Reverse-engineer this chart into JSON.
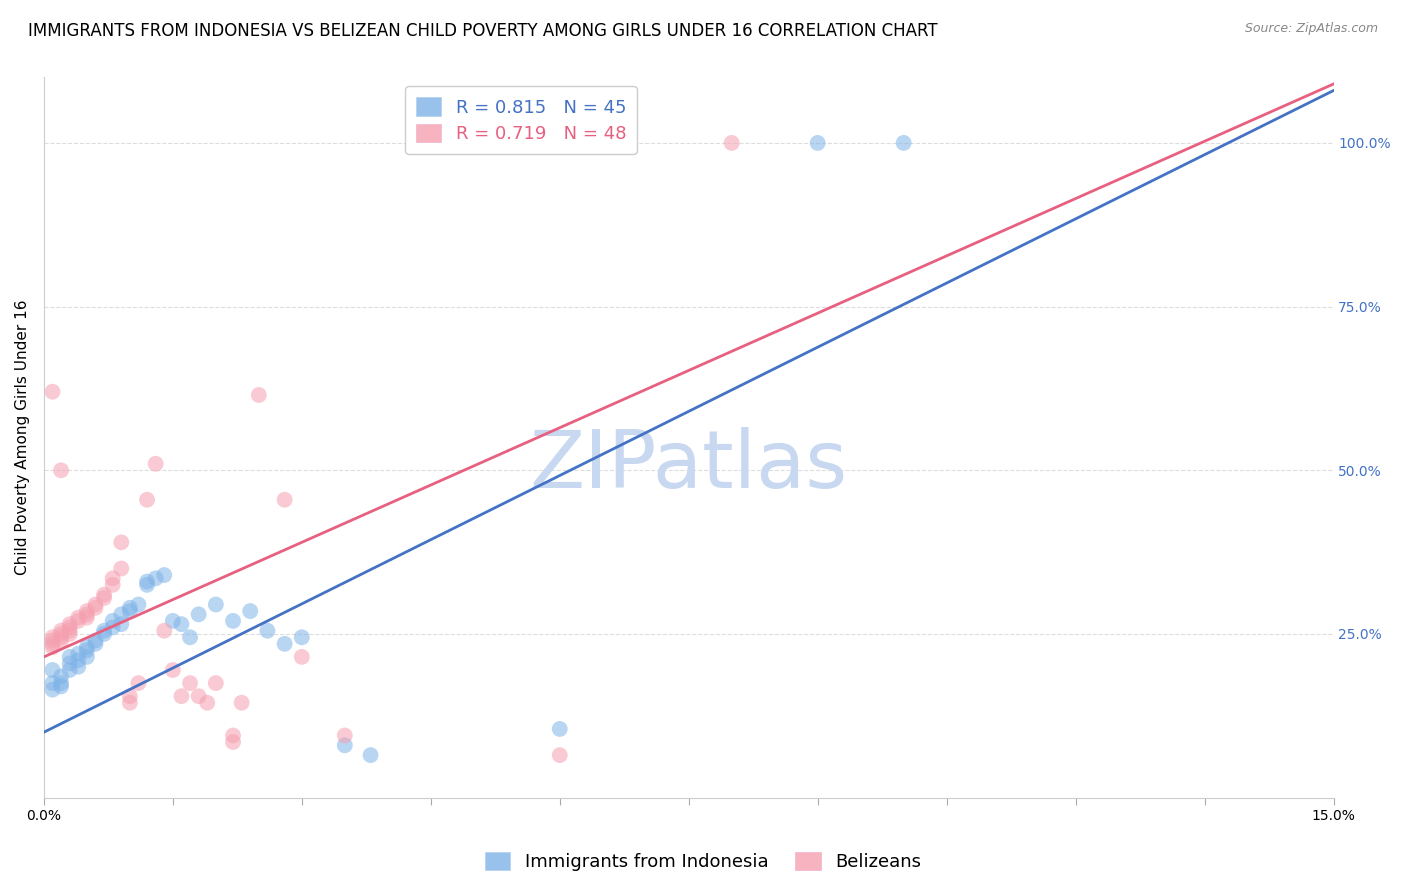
{
  "title": "IMMIGRANTS FROM INDONESIA VS BELIZEAN CHILD POVERTY AMONG GIRLS UNDER 16 CORRELATION CHART",
  "source": "Source: ZipAtlas.com",
  "ylabel": "Child Poverty Among Girls Under 16",
  "xlim": [
    0.0,
    0.15
  ],
  "ylim": [
    0.0,
    1.1
  ],
  "xticks": [
    0.0,
    0.015,
    0.03,
    0.045,
    0.06,
    0.075,
    0.09,
    0.105,
    0.12,
    0.135,
    0.15
  ],
  "xtick_labels_show": {
    "0.0": "0.0%",
    "0.15": "15.0%"
  },
  "yticks_right": [
    0.25,
    0.5,
    0.75,
    1.0
  ],
  "ytick_labels_right": [
    "25.0%",
    "50.0%",
    "75.0%",
    "100.0%"
  ],
  "blue_R": 0.815,
  "blue_N": 45,
  "pink_R": 0.719,
  "pink_N": 48,
  "blue_label": "Immigrants from Indonesia",
  "pink_label": "Belizeans",
  "blue_color": "#7EB3E8",
  "pink_color": "#F5A0B0",
  "blue_line_color": "#4472C4",
  "pink_line_color": "#E86080",
  "blue_scatter": [
    [
      0.001,
      0.195
    ],
    [
      0.001,
      0.175
    ],
    [
      0.001,
      0.165
    ],
    [
      0.002,
      0.185
    ],
    [
      0.002,
      0.175
    ],
    [
      0.002,
      0.17
    ],
    [
      0.003,
      0.215
    ],
    [
      0.003,
      0.205
    ],
    [
      0.003,
      0.195
    ],
    [
      0.004,
      0.22
    ],
    [
      0.004,
      0.21
    ],
    [
      0.004,
      0.2
    ],
    [
      0.005,
      0.23
    ],
    [
      0.005,
      0.225
    ],
    [
      0.005,
      0.215
    ],
    [
      0.006,
      0.235
    ],
    [
      0.006,
      0.24
    ],
    [
      0.007,
      0.255
    ],
    [
      0.007,
      0.25
    ],
    [
      0.008,
      0.26
    ],
    [
      0.008,
      0.27
    ],
    [
      0.009,
      0.265
    ],
    [
      0.009,
      0.28
    ],
    [
      0.01,
      0.285
    ],
    [
      0.01,
      0.29
    ],
    [
      0.011,
      0.295
    ],
    [
      0.012,
      0.33
    ],
    [
      0.012,
      0.325
    ],
    [
      0.013,
      0.335
    ],
    [
      0.014,
      0.34
    ],
    [
      0.015,
      0.27
    ],
    [
      0.016,
      0.265
    ],
    [
      0.017,
      0.245
    ],
    [
      0.018,
      0.28
    ],
    [
      0.02,
      0.295
    ],
    [
      0.022,
      0.27
    ],
    [
      0.024,
      0.285
    ],
    [
      0.026,
      0.255
    ],
    [
      0.028,
      0.235
    ],
    [
      0.03,
      0.245
    ],
    [
      0.035,
      0.08
    ],
    [
      0.038,
      0.065
    ],
    [
      0.06,
      0.105
    ],
    [
      0.09,
      1.0
    ],
    [
      0.1,
      1.0
    ]
  ],
  "pink_scatter": [
    [
      0.001,
      0.245
    ],
    [
      0.001,
      0.24
    ],
    [
      0.001,
      0.235
    ],
    [
      0.001,
      0.23
    ],
    [
      0.002,
      0.255
    ],
    [
      0.002,
      0.25
    ],
    [
      0.002,
      0.245
    ],
    [
      0.002,
      0.24
    ],
    [
      0.003,
      0.265
    ],
    [
      0.003,
      0.26
    ],
    [
      0.003,
      0.255
    ],
    [
      0.003,
      0.25
    ],
    [
      0.004,
      0.275
    ],
    [
      0.004,
      0.27
    ],
    [
      0.005,
      0.285
    ],
    [
      0.005,
      0.28
    ],
    [
      0.005,
      0.275
    ],
    [
      0.006,
      0.295
    ],
    [
      0.006,
      0.29
    ],
    [
      0.007,
      0.31
    ],
    [
      0.007,
      0.305
    ],
    [
      0.008,
      0.335
    ],
    [
      0.008,
      0.325
    ],
    [
      0.009,
      0.35
    ],
    [
      0.009,
      0.39
    ],
    [
      0.01,
      0.155
    ],
    [
      0.01,
      0.145
    ],
    [
      0.011,
      0.175
    ],
    [
      0.012,
      0.455
    ],
    [
      0.013,
      0.51
    ],
    [
      0.014,
      0.255
    ],
    [
      0.015,
      0.195
    ],
    [
      0.016,
      0.155
    ],
    [
      0.017,
      0.175
    ],
    [
      0.018,
      0.155
    ],
    [
      0.019,
      0.145
    ],
    [
      0.02,
      0.175
    ],
    [
      0.022,
      0.095
    ],
    [
      0.022,
      0.085
    ],
    [
      0.023,
      0.145
    ],
    [
      0.025,
      0.615
    ],
    [
      0.028,
      0.455
    ],
    [
      0.03,
      0.215
    ],
    [
      0.035,
      0.095
    ],
    [
      0.06,
      0.065
    ],
    [
      0.001,
      0.62
    ],
    [
      0.002,
      0.5
    ],
    [
      0.08,
      1.0
    ]
  ],
  "blue_line": {
    "x0": 0.0,
    "y0": 0.1,
    "x1": 0.15,
    "y1": 1.08
  },
  "pink_line": {
    "x0": 0.0,
    "y0": 0.215,
    "x1": 0.15,
    "y1": 1.09
  },
  "watermark": "ZIPatlas",
  "watermark_color": "#C8D8F0",
  "background_color": "#FFFFFF",
  "grid_color": "#DDDDDD",
  "title_fontsize": 12,
  "axis_label_fontsize": 11,
  "tick_fontsize": 10,
  "legend_fontsize": 13
}
